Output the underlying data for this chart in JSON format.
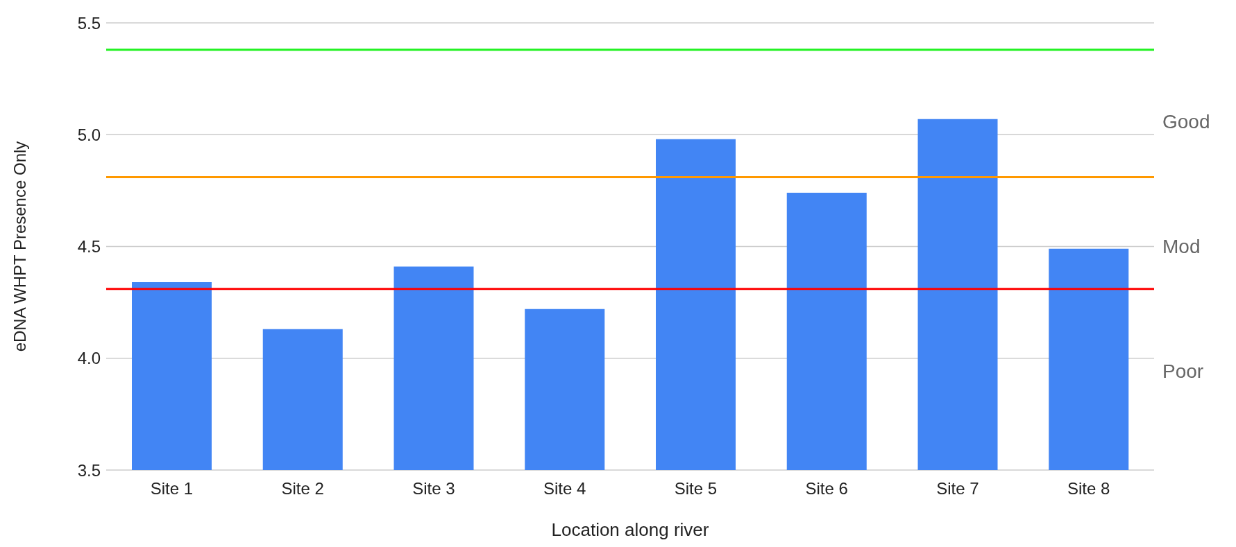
{
  "chart_data": {
    "type": "bar",
    "xlabel": "Location along river",
    "ylabel": "eDNA WHPT Presence Only",
    "categories": [
      "Site 1",
      "Site 2",
      "Site 3",
      "Site 4",
      "Site 5",
      "Site 6",
      "Site 7",
      "Site 8"
    ],
    "values": [
      4.34,
      4.13,
      4.41,
      4.22,
      4.98,
      4.74,
      5.07,
      4.49
    ],
    "color": "#4285f4",
    "ylim": [
      3.5,
      5.5
    ],
    "yticks": [
      3.5,
      {
        "value": 4,
        "label": "4.0"
      },
      4.5,
      {
        "value": 5,
        "label": "5.0"
      },
      5.5
    ],
    "grid": "y",
    "ref_lines": [
      {
        "axis": "y",
        "value": 5.38,
        "color": "#1ff21f"
      },
      {
        "axis": "y",
        "value": 4.81,
        "color": "#ff9900"
      },
      {
        "axis": "y",
        "value": 4.31,
        "color": "#ff0000"
      }
    ],
    "annotations": [
      "Good",
      "Mod",
      "Poor"
    ]
  }
}
